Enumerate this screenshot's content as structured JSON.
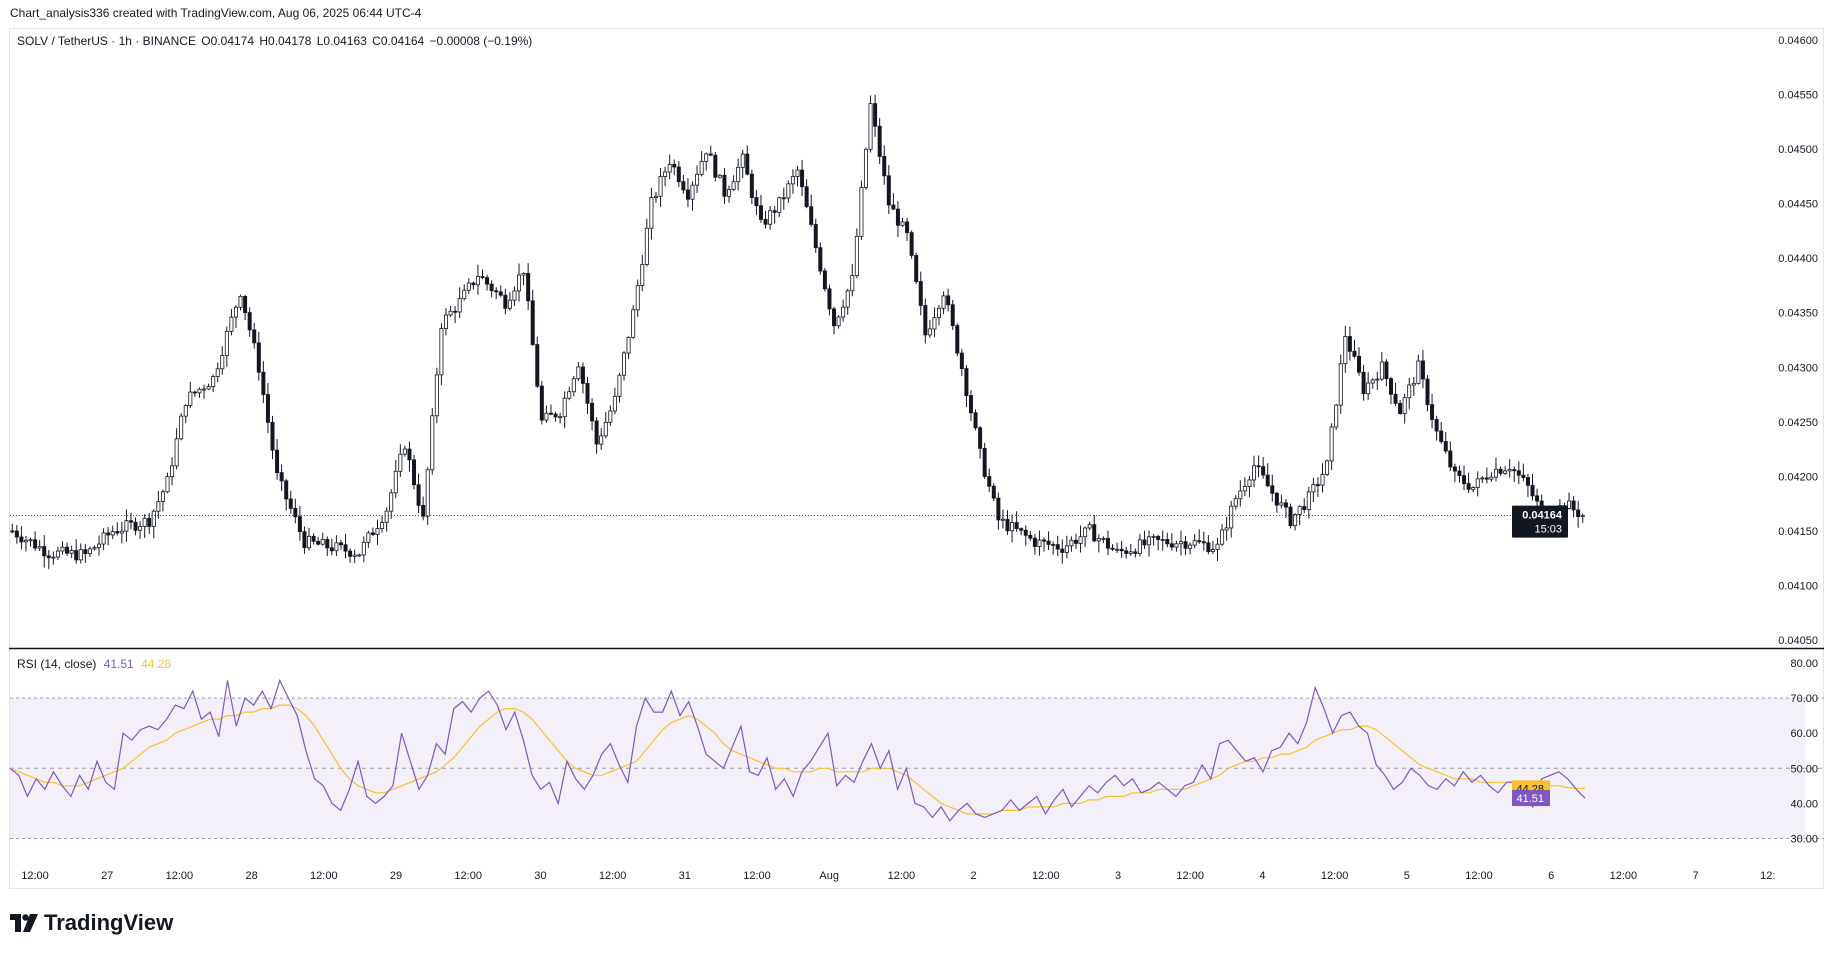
{
  "header": {
    "attribution": "Chart_analysis336 created with TradingView.com, Aug 06, 2025 06:44 UTC-4"
  },
  "legend": {
    "symbol": "SOLV / TetherUS · 1h · BINANCE",
    "open": "O0.04174",
    "high": "H0.04178",
    "low": "L0.04163",
    "close": "C0.04164",
    "change": "−0.00008 (−0.19%)"
  },
  "rsi_legend": {
    "label": "RSI (14, close)",
    "rsi_value": "41.51",
    "ma_value": "44.28"
  },
  "price_badge": {
    "price": "0.04164",
    "countdown": "15:03"
  },
  "rsi_badges": {
    "ma": "44.28",
    "rsi": "41.51"
  },
  "brand": {
    "name": "TradingView"
  },
  "colors": {
    "up": "#ffffff",
    "down": "#131722",
    "wick": "#131722",
    "rsi_line": "#7e57c2",
    "rsi_ma": "#f7c12e",
    "rsi_band": "#7e57c2",
    "badge_dark": "#131722",
    "badge_purple": "#7e57c2",
    "badge_yellow": "#f7c12e"
  },
  "chart_data": [
    {
      "type": "candlestick",
      "title": "SOLV / TetherUS · 1h · BINANCE",
      "y_ticks": [
        "0.04600",
        "0.04550",
        "0.04500",
        "0.04450",
        "0.04400",
        "0.04350",
        "0.04300",
        "0.04250",
        "0.04200",
        "0.04150",
        "0.04100",
        "0.04050"
      ],
      "ylim": [
        0.0405,
        0.046
      ],
      "x_ticks": [
        "12:00",
        "27",
        "12:00",
        "28",
        "12:00",
        "29",
        "12:00",
        "30",
        "12:00",
        "31",
        "12:00",
        "Aug",
        "12:00",
        "2",
        "12:00",
        "3",
        "12:00",
        "4",
        "12:00",
        "5",
        "12:00",
        "6",
        "12:00",
        "7",
        "12:"
      ],
      "last_price": 0.04164,
      "close_path": [
        [
          0,
          0.0415
        ],
        [
          8,
          0.0413
        ],
        [
          16,
          0.04128
        ],
        [
          22,
          0.0415
        ],
        [
          30,
          0.0416
        ],
        [
          34,
          0.04195
        ],
        [
          38,
          0.0427
        ],
        [
          44,
          0.0429
        ],
        [
          50,
          0.0437
        ],
        [
          54,
          0.043
        ],
        [
          58,
          0.042
        ],
        [
          64,
          0.0414
        ],
        [
          70,
          0.04135
        ],
        [
          76,
          0.0413
        ],
        [
          82,
          0.0417
        ],
        [
          86,
          0.0423
        ],
        [
          90,
          0.0416
        ],
        [
          94,
          0.0434
        ],
        [
          98,
          0.0436
        ],
        [
          102,
          0.04385
        ],
        [
          108,
          0.0436
        ],
        [
          112,
          0.0439
        ],
        [
          116,
          0.0425
        ],
        [
          120,
          0.0426
        ],
        [
          124,
          0.04305
        ],
        [
          128,
          0.0423
        ],
        [
          132,
          0.0427
        ],
        [
          136,
          0.0435
        ],
        [
          140,
          0.0445
        ],
        [
          144,
          0.0449
        ],
        [
          148,
          0.0446
        ],
        [
          152,
          0.045
        ],
        [
          156,
          0.0446
        ],
        [
          160,
          0.0449
        ],
        [
          164,
          0.0443
        ],
        [
          168,
          0.0445
        ],
        [
          172,
          0.0448
        ],
        [
          176,
          0.0441
        ],
        [
          180,
          0.0434
        ],
        [
          184,
          0.0438
        ],
        [
          188,
          0.0454
        ],
        [
          192,
          0.0445
        ],
        [
          196,
          0.0442
        ],
        [
          200,
          0.0433
        ],
        [
          204,
          0.0437
        ],
        [
          208,
          0.043
        ],
        [
          212,
          0.0422
        ],
        [
          216,
          0.0416
        ],
        [
          220,
          0.0415
        ],
        [
          224,
          0.0414
        ],
        [
          230,
          0.04135
        ],
        [
          236,
          0.0415
        ],
        [
          242,
          0.0413
        ],
        [
          250,
          0.0414
        ],
        [
          258,
          0.0414
        ],
        [
          264,
          0.04135
        ],
        [
          268,
          0.0418
        ],
        [
          272,
          0.0421
        ],
        [
          276,
          0.04185
        ],
        [
          280,
          0.0416
        ],
        [
          284,
          0.0418
        ],
        [
          288,
          0.0421
        ],
        [
          292,
          0.0433
        ],
        [
          296,
          0.0428
        ],
        [
          300,
          0.043
        ],
        [
          304,
          0.0426
        ],
        [
          308,
          0.043
        ],
        [
          312,
          0.0424
        ],
        [
          316,
          0.042
        ],
        [
          320,
          0.0419
        ],
        [
          324,
          0.04205
        ],
        [
          328,
          0.0421
        ],
        [
          332,
          0.0419
        ],
        [
          336,
          0.0416
        ],
        [
          340,
          0.04175
        ],
        [
          344,
          0.04164
        ]
      ],
      "candle_count": 345
    },
    {
      "type": "line",
      "title": "RSI (14, close)",
      "y_ticks": [
        "80.00",
        "70.00",
        "60.00",
        "50.00",
        "40.00",
        "30.00"
      ],
      "ylim": [
        27,
        80
      ],
      "band": [
        30,
        70
      ],
      "midline": 50,
      "series": [
        {
          "name": "RSI",
          "values": [
            50,
            48,
            42,
            47,
            44,
            49,
            45,
            42,
            48,
            44,
            52,
            46,
            44,
            60,
            58,
            61,
            62,
            61,
            64,
            68,
            67,
            72,
            64,
            66,
            59,
            75,
            62,
            70,
            68,
            72,
            67,
            75,
            70,
            65,
            55,
            47,
            45,
            40,
            38,
            44,
            52,
            42,
            40,
            42,
            45,
            60,
            52,
            44,
            48,
            57,
            54,
            67,
            69,
            66,
            70,
            72,
            68,
            61,
            66,
            58,
            48,
            44,
            46,
            40,
            52,
            47,
            44,
            48,
            54,
            57,
            51,
            46,
            62,
            70,
            66,
            66,
            72,
            65,
            69,
            62,
            54,
            52,
            50,
            56,
            62,
            49,
            48,
            53,
            44,
            47,
            42,
            49,
            52,
            56,
            60,
            45,
            48,
            46,
            52,
            57,
            50,
            55,
            44,
            50,
            40,
            39,
            36,
            39,
            35,
            38,
            40,
            37,
            36,
            37,
            38,
            41,
            38,
            40,
            42,
            37,
            41,
            44,
            39,
            42,
            45,
            43,
            46,
            48,
            45,
            47,
            43,
            44,
            46,
            44,
            42,
            45,
            46,
            51,
            47,
            57,
            58,
            55,
            52,
            53,
            49,
            55,
            56,
            60,
            57,
            63,
            73,
            67,
            60,
            65,
            66,
            62,
            60,
            51,
            48,
            44,
            46,
            50,
            48,
            45,
            44,
            47,
            45,
            49,
            46,
            48,
            45,
            43,
            46,
            46,
            42,
            39,
            47,
            48,
            49,
            47,
            44,
            41.51
          ]
        },
        {
          "name": "MA",
          "values": [
            50,
            49,
            48,
            47,
            46,
            46,
            45,
            45,
            45,
            46,
            47,
            48,
            49,
            50,
            52,
            54,
            56,
            57,
            58,
            60,
            61,
            62,
            63,
            64,
            64,
            65,
            65,
            66,
            66,
            67,
            67,
            68,
            68,
            67,
            65,
            62,
            58,
            54,
            50,
            47,
            45,
            44,
            43,
            43,
            44,
            45,
            46,
            47,
            48,
            49,
            51,
            53,
            56,
            59,
            62,
            64,
            66,
            67,
            67,
            66,
            64,
            61,
            58,
            55,
            52,
            50,
            49,
            48,
            48,
            49,
            50,
            51,
            52,
            55,
            58,
            61,
            63,
            64,
            65,
            64,
            62,
            60,
            57,
            55,
            54,
            53,
            52,
            51,
            50,
            50,
            49,
            49,
            49,
            50,
            50,
            49,
            49,
            49,
            49,
            50,
            50,
            50,
            49,
            48,
            46,
            44,
            42,
            40,
            39,
            38,
            37,
            37,
            37,
            37,
            38,
            38,
            38,
            39,
            39,
            39,
            39,
            40,
            40,
            40,
            41,
            41,
            42,
            42,
            42,
            43,
            43,
            43,
            44,
            44,
            44,
            44,
            45,
            46,
            47,
            48,
            50,
            51,
            52,
            52,
            53,
            53,
            54,
            54,
            55,
            56,
            58,
            59,
            60,
            61,
            61,
            62,
            62,
            61,
            59,
            57,
            55,
            53,
            51,
            50,
            49,
            48,
            47,
            47,
            47,
            46,
            46,
            46,
            46,
            46,
            45,
            45,
            45,
            45,
            45,
            44.5,
            44.3,
            44.28
          ]
        }
      ]
    }
  ]
}
